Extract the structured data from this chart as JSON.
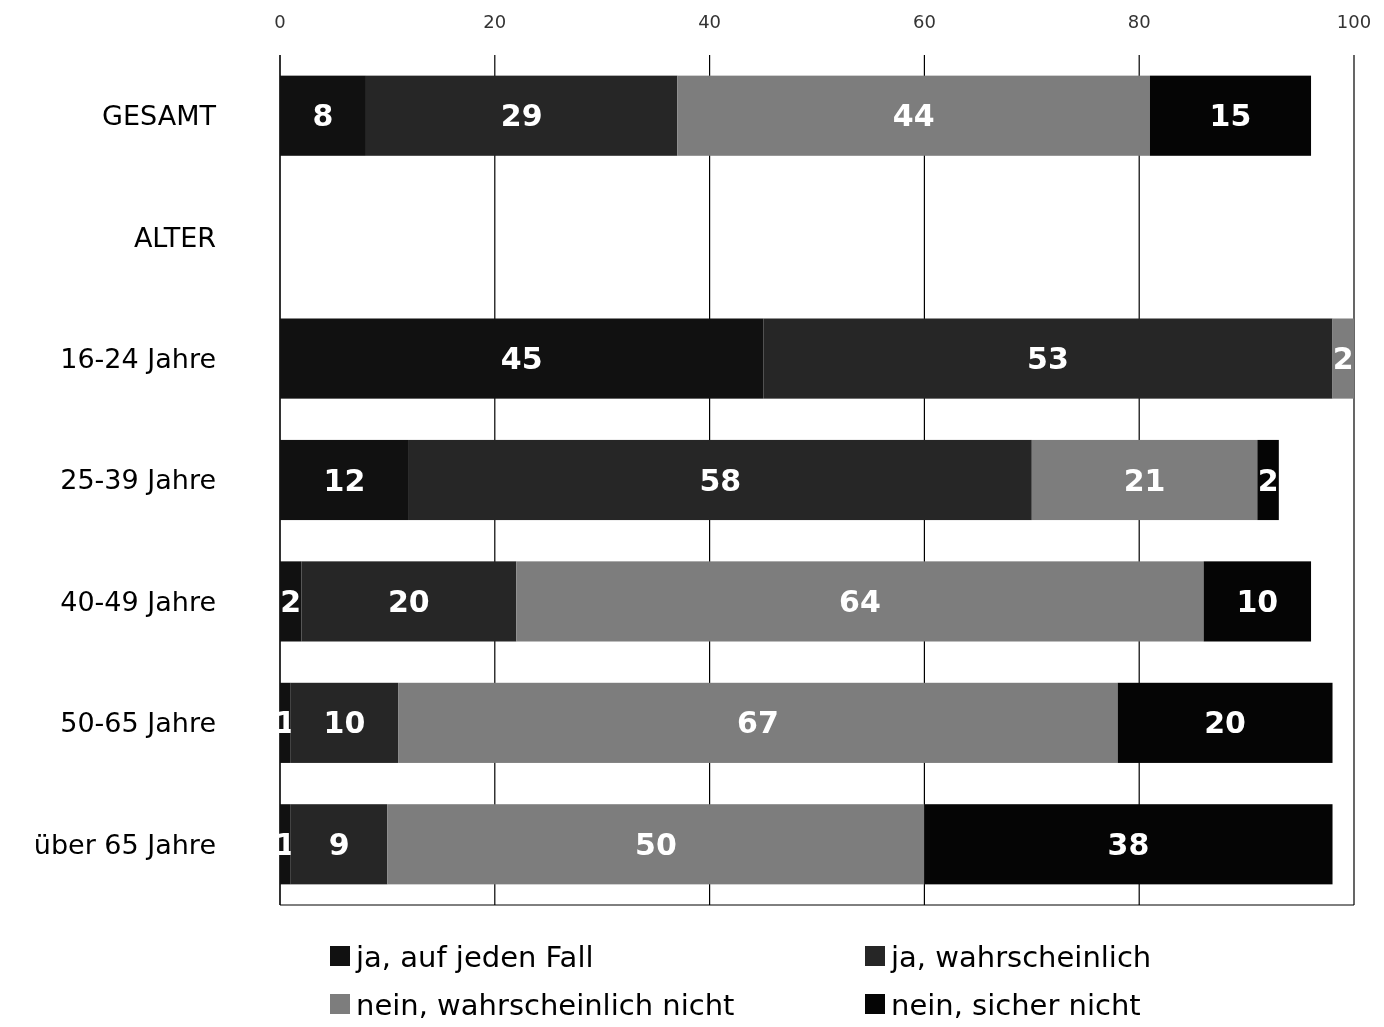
{
  "chart_data": {
    "type": "bar",
    "orientation": "horizontal",
    "stacked": true,
    "categories": [
      "GESAMT",
      "ALTER",
      "16-24 Jahre",
      "25-39 Jahre",
      "40-49 Jahre",
      "50-65 Jahre",
      "über 65 Jahre"
    ],
    "series": [
      {
        "name": "ja, auf jeden Fall",
        "color": "#111111",
        "values": [
          8,
          null,
          45,
          12,
          2,
          1,
          1
        ]
      },
      {
        "name": "ja, wahrscheinlich",
        "color": "#262626",
        "values": [
          29,
          null,
          53,
          58,
          20,
          10,
          9
        ]
      },
      {
        "name": "nein, wahrscheinlich nicht",
        "color": "#7d7d7d",
        "values": [
          44,
          null,
          2,
          21,
          64,
          67,
          50
        ]
      },
      {
        "name": "nein, sicher nicht",
        "color": "#050505",
        "values": [
          15,
          null,
          null,
          2,
          10,
          20,
          38
        ]
      }
    ],
    "xlim": [
      0,
      100
    ],
    "xticks": [
      0,
      20,
      40,
      60,
      80,
      100
    ],
    "grid": "x",
    "data_labels": true,
    "legend": "bottom"
  }
}
